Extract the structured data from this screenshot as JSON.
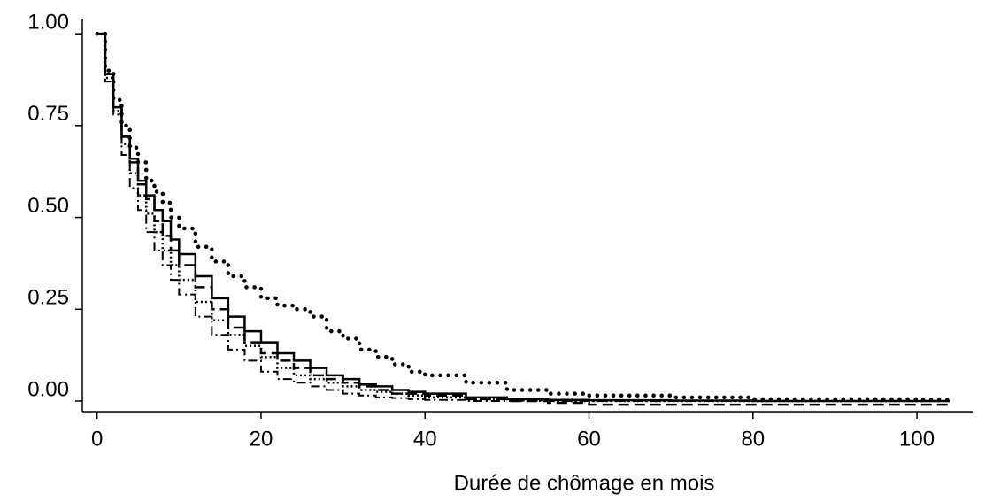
{
  "chart_data": {
    "type": "step",
    "xlabel": "Durée de chômage en mois",
    "x": [
      0,
      1,
      2,
      3,
      4,
      5,
      6,
      7,
      8,
      9,
      10,
      12,
      14,
      16,
      18,
      20,
      22,
      24,
      26,
      28,
      30,
      32,
      34,
      36,
      38,
      40,
      45,
      50,
      55,
      60,
      70,
      80,
      90,
      100,
      104
    ],
    "series": [
      {
        "color": "#000000",
        "linestyle": "dotted-heavy",
        "values": [
          1.0,
          0.9,
          0.82,
          0.75,
          0.69,
          0.65,
          0.6,
          0.57,
          0.54,
          0.5,
          0.47,
          0.42,
          0.38,
          0.34,
          0.31,
          0.28,
          0.26,
          0.25,
          0.23,
          0.19,
          0.17,
          0.14,
          0.12,
          0.1,
          0.08,
          0.07,
          0.05,
          0.03,
          0.02,
          0.015,
          0.01,
          0.005,
          0.005,
          0.003,
          0.003
        ]
      },
      {
        "color": "#000000",
        "linestyle": "solid",
        "values": [
          1.0,
          0.89,
          0.8,
          0.72,
          0.66,
          0.6,
          0.56,
          0.52,
          0.49,
          0.44,
          0.4,
          0.34,
          0.28,
          0.23,
          0.19,
          0.16,
          0.13,
          0.11,
          0.09,
          0.07,
          0.06,
          0.045,
          0.04,
          0.03,
          0.025,
          0.02,
          0.01,
          0.005,
          0.003,
          0.002,
          0.001,
          0,
          0,
          0,
          0
        ]
      },
      {
        "color": "#000000",
        "linestyle": "dashed",
        "values": [
          1.0,
          0.89,
          0.8,
          0.72,
          0.65,
          0.59,
          0.55,
          0.49,
          0.45,
          0.41,
          0.37,
          0.31,
          0.25,
          0.2,
          0.16,
          0.13,
          0.11,
          0.09,
          0.07,
          0.06,
          0.05,
          0.04,
          0.03,
          0.02,
          0.02,
          0.015,
          0.005,
          0,
          -0.005,
          -0.01,
          -0.01,
          -0.01,
          -0.01,
          -0.01,
          -0.01
        ]
      },
      {
        "color": "#000000",
        "linestyle": "dotted",
        "values": [
          1.0,
          0.88,
          0.79,
          0.7,
          0.62,
          0.56,
          0.51,
          0.46,
          0.41,
          0.37,
          0.33,
          0.27,
          0.22,
          0.18,
          0.15,
          0.12,
          0.09,
          0.07,
          0.06,
          0.05,
          0.04,
          0.03,
          0.025,
          0.02,
          0.015,
          0.01,
          0.005,
          0.002,
          0,
          0,
          0,
          0,
          0,
          0,
          0
        ]
      },
      {
        "color": "#000000",
        "linestyle": "dashdot",
        "values": [
          1.0,
          0.87,
          0.78,
          0.67,
          0.58,
          0.52,
          0.46,
          0.41,
          0.37,
          0.33,
          0.29,
          0.23,
          0.18,
          0.14,
          0.11,
          0.08,
          0.06,
          0.05,
          0.04,
          0.03,
          0.02,
          0.015,
          0.01,
          0.008,
          0.005,
          0.003,
          0,
          0,
          0,
          0,
          0,
          0,
          0,
          0,
          0
        ]
      }
    ],
    "xlim": [
      -1.8,
      106.9
    ],
    "xticks": [
      0,
      20,
      40,
      60,
      80,
      100
    ],
    "ylim": [
      -0.029,
      1.039
    ],
    "yticks": [
      {
        "value": 0,
        "label": "0.00"
      },
      {
        "value": 0.25,
        "label": "0.25"
      },
      {
        "value": 0.5,
        "label": "0.50"
      },
      {
        "value": 0.75,
        "label": "0.75"
      },
      {
        "value": 1,
        "label": "1.00"
      }
    ]
  }
}
